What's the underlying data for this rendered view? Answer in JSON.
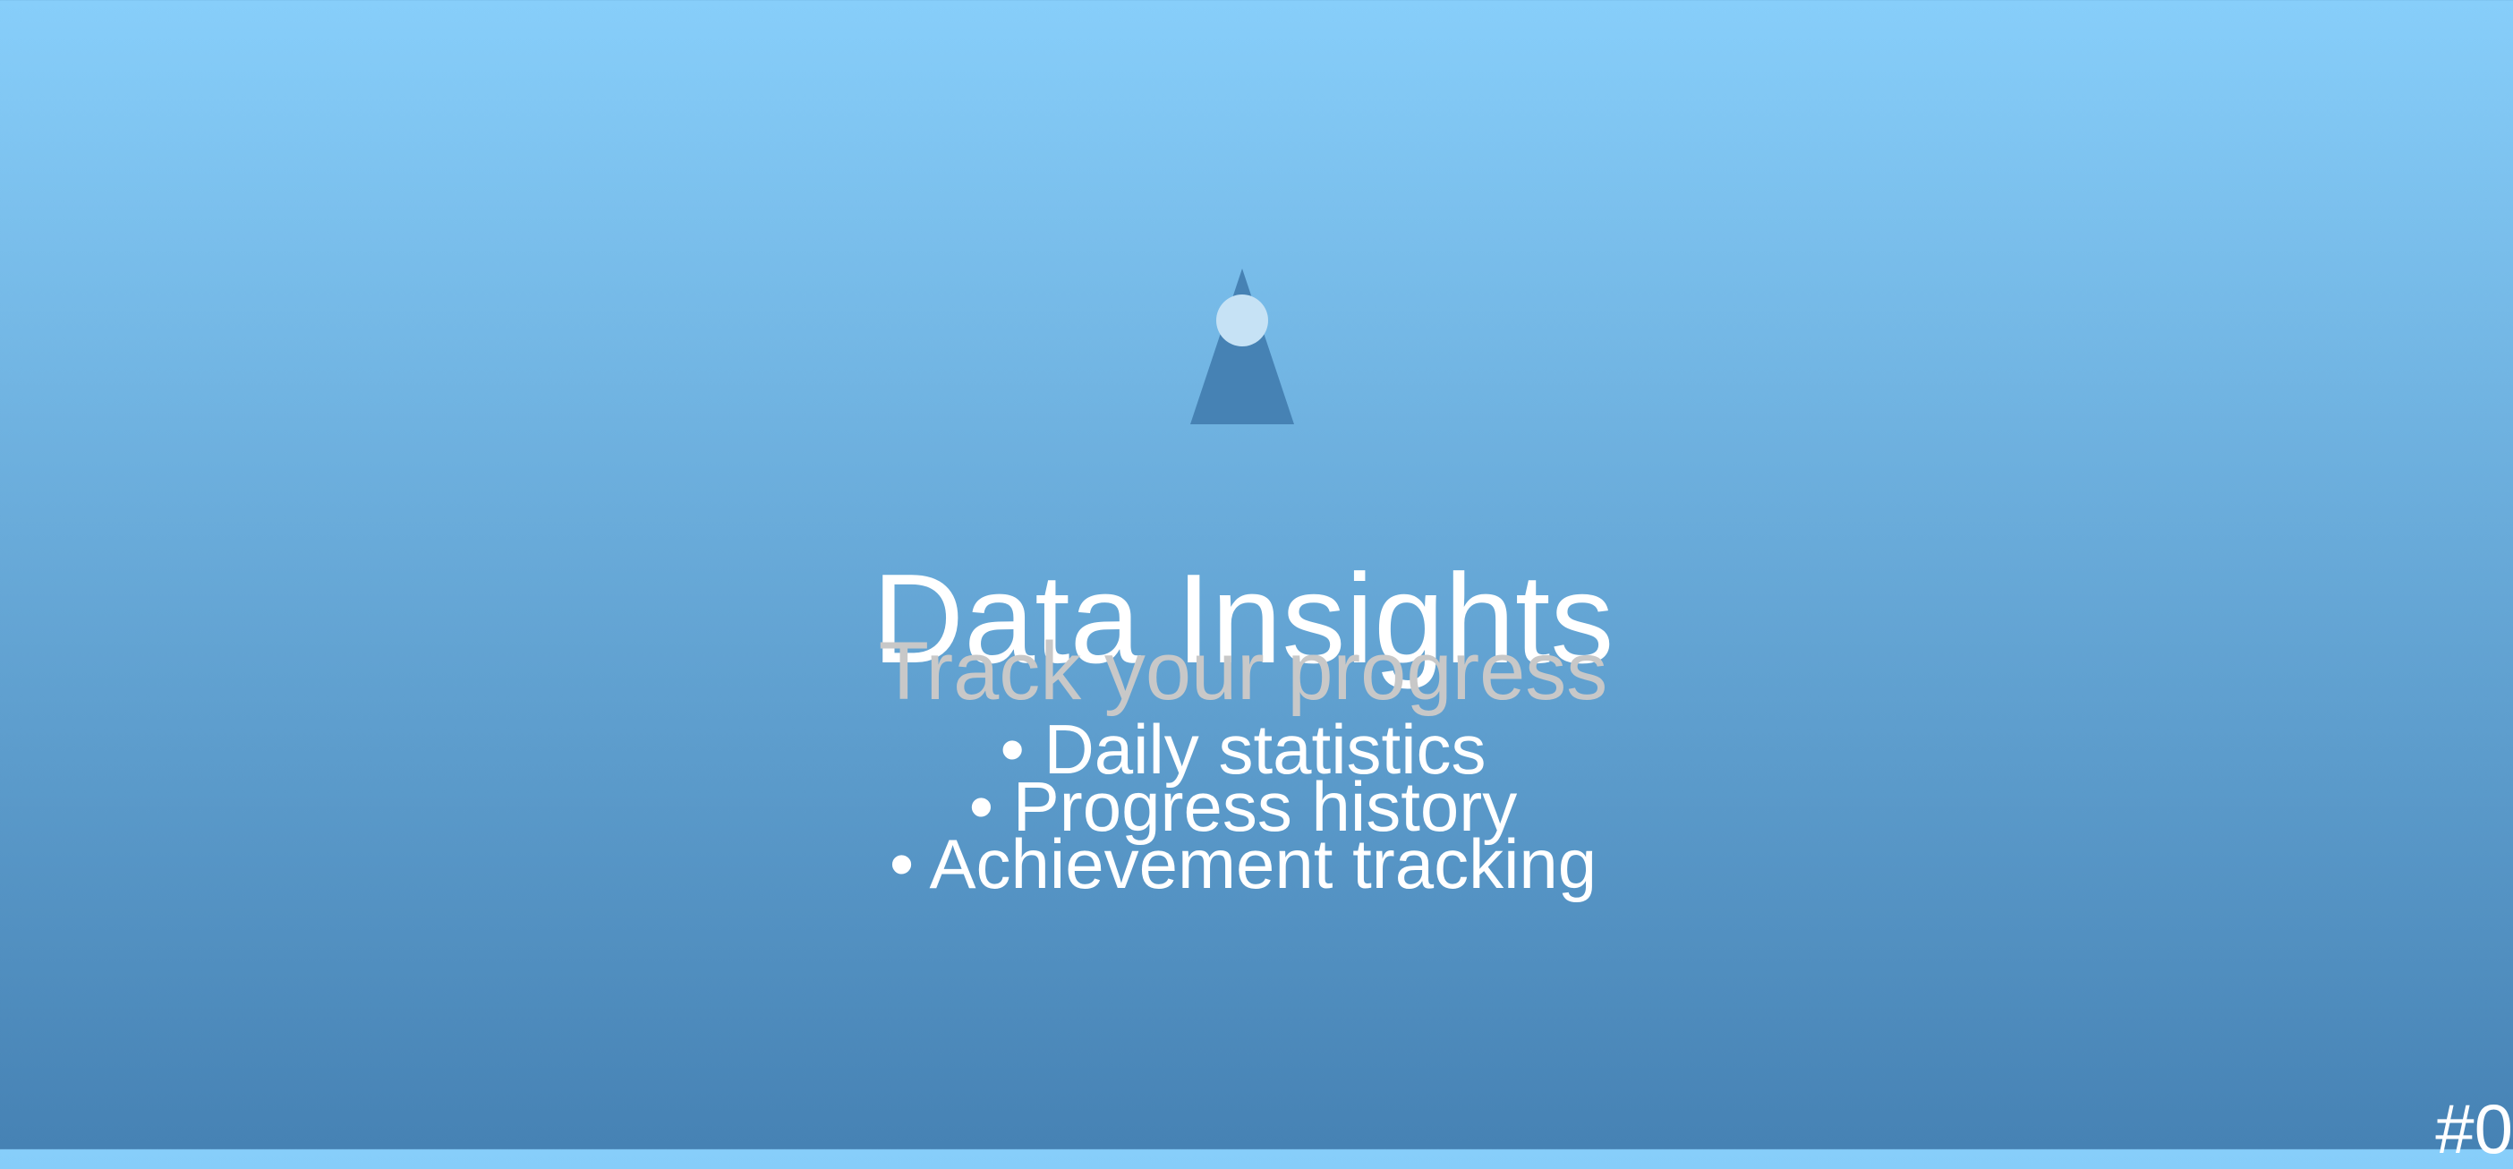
{
  "app": {
    "title": "Data Insights",
    "subtitle": "Track your progress",
    "logo_icon": "location-pin-icon"
  },
  "features": {
    "bullet": "•",
    "items": [
      "Daily statistics",
      "Progress history",
      "Achievement tracking"
    ]
  },
  "corner_label": "#0",
  "colors": {
    "background_top": "#87CEFA",
    "background_bottom": "#4682B4",
    "logo_triangle": "#4682B4",
    "logo_dot": "#C6E2F5",
    "title": "#FFFFFF",
    "subtitle": "#C8C8C8",
    "features": "#FFFFFF"
  }
}
